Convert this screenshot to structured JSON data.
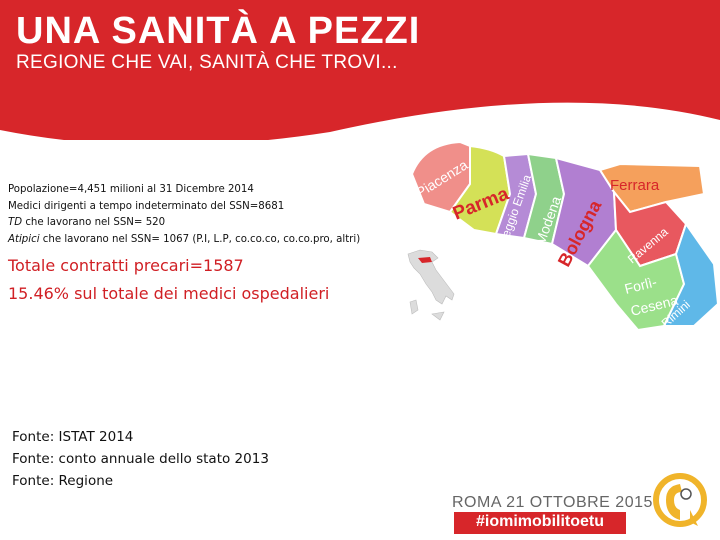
{
  "header": {
    "title": "UNA SANITÀ A PEZZI",
    "subtitle": "REGIONE CHE VAI, SANITÀ CHE TROVI...",
    "color": "#d7262a"
  },
  "info": {
    "line1": "Popolazione=4,451 milioni al 31 Dicembre 2014",
    "line2": "Medici dirigenti a tempo indeterminato del SSN=8681",
    "line3_em": "TD",
    "line3_rest": " che lavorano nel SSN= 520",
    "line4_em": "Atipici",
    "line4_rest": " che lavorano nel SSN= 1067  (P.I, L.P, co.co.co, co.co.pro, altri)"
  },
  "highlight": {
    "line1": "Totale contratti precari=1587",
    "line2": "15.46% sul totale dei medici ospedalieri",
    "color": "#d01f24"
  },
  "sources": [
    "Fonte: ISTAT 2014",
    "Fonte: conto annuale dello stato 2013",
    "Fonte: Regione"
  ],
  "map": {
    "provinces": [
      {
        "name": "Piacenza",
        "color": "#f08f8a"
      },
      {
        "name": "Parma",
        "color": "#d4e157"
      },
      {
        "name": "Reggio Emilia",
        "color": "#b58bd6"
      },
      {
        "name": "Modena",
        "color": "#8fd18b"
      },
      {
        "name": "Bologna",
        "color": "#b17fd1"
      },
      {
        "name": "Ferrara",
        "color": "#f5a05c"
      },
      {
        "name": "Ravenna",
        "color": "#e8585f"
      },
      {
        "name": "Forlì-",
        "color": "#9be08a"
      },
      {
        "name": "Cesena",
        "color": "#9be08a"
      },
      {
        "name": "Rimini",
        "color": "#5fb8e8"
      }
    ]
  },
  "footer": {
    "event": "ROMA 21 OTTOBRE 2015",
    "hashtag": "#iomimobilitoetu"
  }
}
